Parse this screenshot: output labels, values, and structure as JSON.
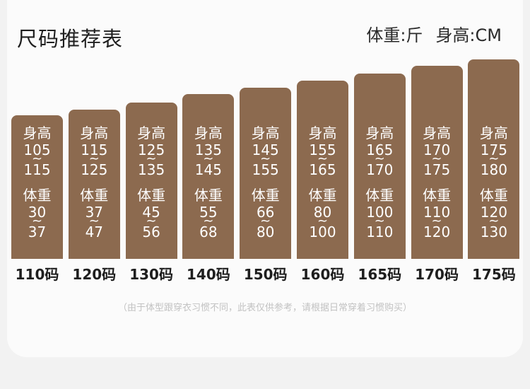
{
  "title": "尺码推荐表",
  "units": {
    "weight": "体重:斤",
    "height": "身高:CM"
  },
  "height_label": "身高",
  "weight_label": "体重",
  "tilde": "~",
  "columns": [
    {
      "size": "110码",
      "height_min": "105",
      "height_max": "115",
      "weight_min": "30",
      "weight_max": "37"
    },
    {
      "size": "120码",
      "height_min": "115",
      "height_max": "125",
      "weight_min": "37",
      "weight_max": "47"
    },
    {
      "size": "130码",
      "height_min": "125",
      "height_max": "135",
      "weight_min": "45",
      "weight_max": "56"
    },
    {
      "size": "140码",
      "height_min": "135",
      "height_max": "145",
      "weight_min": "55",
      "weight_max": "68"
    },
    {
      "size": "150码",
      "height_min": "145",
      "height_max": "155",
      "weight_min": "66",
      "weight_max": "80"
    },
    {
      "size": "160码",
      "height_min": "155",
      "height_max": "165",
      "weight_min": "80",
      "weight_max": "100"
    },
    {
      "size": "165码",
      "height_min": "165",
      "height_max": "170",
      "weight_min": "100",
      "weight_max": "110"
    },
    {
      "size": "170码",
      "height_min": "170",
      "height_max": "175",
      "weight_min": "110",
      "weight_max": "120"
    },
    {
      "size": "175码",
      "height_min": "175",
      "height_max": "180",
      "weight_min": "120",
      "weight_max": "130"
    }
  ],
  "note": "（由于体型跟穿衣习惯不同，此表仅供参考，请根据日常穿着习惯购买）",
  "colors": {
    "bar": "#8c6a4f",
    "background": "#f2f2f2",
    "card": "#fbfbfb"
  }
}
